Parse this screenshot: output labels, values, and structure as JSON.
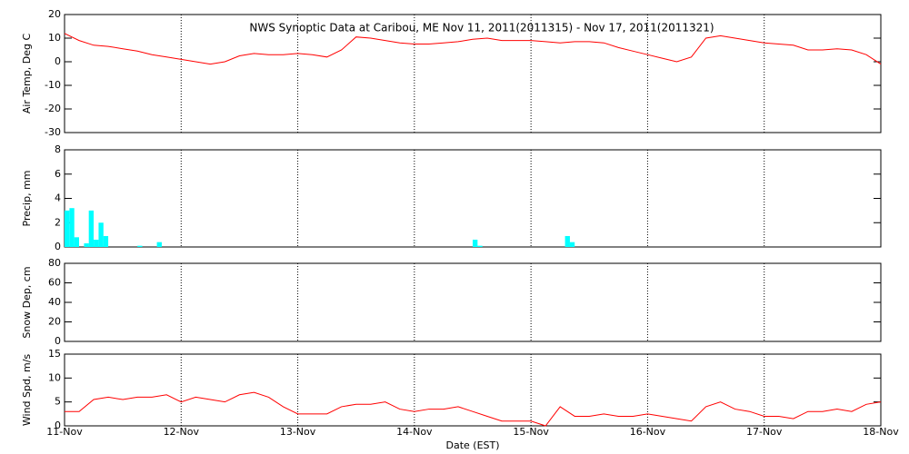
{
  "chart_data": [
    {
      "type": "line",
      "title": "NWS Synoptic Data at Caribou, ME   Nov 11, 2011(2011315) - Nov 17, 2011(2011321)",
      "ylabel": "Air Temp, Deg C",
      "xlim": [
        11,
        18
      ],
      "xticks": [
        11,
        12,
        13,
        14,
        15,
        16,
        17,
        18
      ],
      "ylim": [
        -30,
        20
      ],
      "yticks": [
        -30,
        -20,
        -10,
        0,
        10,
        20
      ],
      "grid": "x",
      "x": [
        11,
        11.125,
        11.25,
        11.375,
        11.5,
        11.625,
        11.75,
        11.875,
        12,
        12.125,
        12.25,
        12.375,
        12.5,
        12.625,
        12.75,
        12.875,
        13,
        13.125,
        13.25,
        13.375,
        13.5,
        13.625,
        13.75,
        13.875,
        14,
        14.125,
        14.25,
        14.375,
        14.5,
        14.625,
        14.75,
        14.875,
        15,
        15.125,
        15.25,
        15.375,
        15.5,
        15.625,
        15.75,
        15.875,
        16,
        16.125,
        16.25,
        16.375,
        16.5,
        16.625,
        16.75,
        16.875,
        17,
        17.125,
        17.25,
        17.375,
        17.5,
        17.625,
        17.75,
        17.875,
        18
      ],
      "series": [
        {
          "name": "Air Temp",
          "color": "#ff0000",
          "values": [
            12,
            9,
            7,
            6.5,
            5.5,
            4.5,
            3,
            2,
            1,
            0,
            -1,
            0,
            2.5,
            3.5,
            3,
            3,
            3.5,
            3,
            2,
            5,
            10.5,
            10,
            9,
            8,
            7.5,
            7.5,
            8,
            8.5,
            9.5,
            10,
            9,
            9,
            9,
            8.5,
            8,
            8.5,
            8.5,
            8,
            6,
            4.5,
            3,
            1.5,
            0,
            2,
            10,
            11,
            10,
            9,
            8,
            7.5,
            7,
            5,
            5,
            5.5,
            5,
            3,
            -1
          ]
        }
      ]
    },
    {
      "type": "bar",
      "ylabel": "Precip, mm",
      "xlim": [
        11,
        18
      ],
      "xticks": [
        11,
        12,
        13,
        14,
        15,
        16,
        17,
        18
      ],
      "ylim": [
        0,
        8
      ],
      "yticks": [
        0,
        2,
        4,
        6,
        8
      ],
      "grid": "x",
      "x": [
        11,
        11.042,
        11.083,
        11.167,
        11.208,
        11.25,
        11.292,
        11.333,
        11.625,
        11.792,
        14.5,
        14.542,
        15.292,
        15.333
      ],
      "series": [
        {
          "name": "Precip",
          "color": "#00ffff",
          "values": [
            3,
            3.2,
            0.8,
            0.3,
            3,
            0.6,
            2,
            0.9,
            0.1,
            0.4,
            0.6,
            0.1,
            0.9,
            0.4
          ]
        }
      ]
    },
    {
      "type": "line",
      "ylabel": "Snow Dep, cm",
      "xlim": [
        11,
        18
      ],
      "xticks": [
        11,
        12,
        13,
        14,
        15,
        16,
        17,
        18
      ],
      "ylim": [
        0,
        80
      ],
      "yticks": [
        0,
        20,
        40,
        60,
        80
      ],
      "grid": "x"
    },
    {
      "type": "line",
      "ylabel": "Wind Spd, m/s",
      "xlabel": "Date (EST)",
      "xlim": [
        11,
        18
      ],
      "xticks": [
        {
          "value": 11,
          "label": "11-Nov"
        },
        {
          "value": 12,
          "label": "12-Nov"
        },
        {
          "value": 13,
          "label": "13-Nov"
        },
        {
          "value": 14,
          "label": "14-Nov"
        },
        {
          "value": 15,
          "label": "15-Nov"
        },
        {
          "value": 16,
          "label": "16-Nov"
        },
        {
          "value": 17,
          "label": "17-Nov"
        },
        {
          "value": 18,
          "label": "18-Nov"
        }
      ],
      "ylim": [
        0,
        15
      ],
      "yticks": [
        0,
        5,
        10,
        15
      ],
      "grid": "x",
      "x": [
        11,
        11.125,
        11.25,
        11.375,
        11.5,
        11.625,
        11.75,
        11.875,
        12,
        12.125,
        12.25,
        12.375,
        12.5,
        12.625,
        12.75,
        12.875,
        13,
        13.125,
        13.25,
        13.375,
        13.5,
        13.625,
        13.75,
        13.875,
        14,
        14.125,
        14.25,
        14.375,
        14.5,
        14.625,
        14.75,
        14.875,
        15,
        15.125,
        15.25,
        15.375,
        15.5,
        15.625,
        15.75,
        15.875,
        16,
        16.125,
        16.25,
        16.375,
        16.5,
        16.625,
        16.75,
        16.875,
        17,
        17.125,
        17.25,
        17.375,
        17.5,
        17.625,
        17.75,
        17.875,
        18
      ],
      "series": [
        {
          "name": "Wind Spd",
          "color": "#ff0000",
          "values": [
            3,
            3,
            5.5,
            6,
            5.5,
            6,
            6,
            6.5,
            5,
            6,
            5.5,
            5,
            6.5,
            7,
            6,
            4,
            2.5,
            2.5,
            2.5,
            4,
            4.5,
            4.5,
            5,
            3.5,
            3,
            3.5,
            3.5,
            4,
            3,
            2,
            1,
            1,
            1,
            0,
            4,
            2,
            2,
            2.5,
            2,
            2,
            2.5,
            2,
            1.5,
            1,
            4,
            5,
            3.5,
            3,
            2,
            2,
            1.5,
            3,
            3,
            3.5,
            3,
            4.5,
            5
          ]
        }
      ]
    }
  ]
}
